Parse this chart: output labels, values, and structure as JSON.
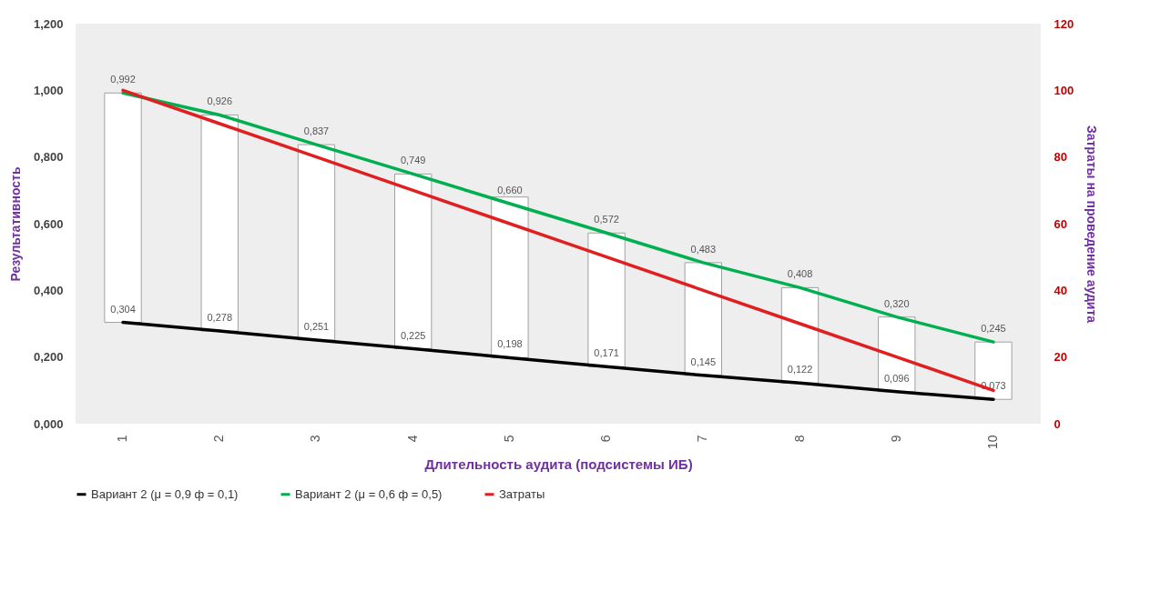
{
  "chart_data": {
    "type": "line",
    "xlabel": "Длительность аудита (подсистемы ИБ)",
    "ylabel": "Результативность",
    "y2label": "Затраты на проведение аудита",
    "categories": [
      "1",
      "2",
      "3",
      "4",
      "5",
      "6",
      "7",
      "8",
      "9",
      "10"
    ],
    "series": [
      {
        "type": "bar",
        "color": "#ffffff",
        "base": [
          0.304,
          0.278,
          0.251,
          0.225,
          0.198,
          0.171,
          0.145,
          0.122,
          0.096,
          0.073
        ],
        "values": [
          0.688,
          0.648,
          0.586,
          0.524,
          0.482,
          0.401,
          0.338,
          0.286,
          0.224,
          0.172
        ]
      },
      {
        "name": "Вариант 2 (μ = 0,9 ф = 0,1)",
        "color": "#000000",
        "values": [
          0.304,
          0.278,
          0.251,
          0.225,
          0.198,
          0.171,
          0.145,
          0.122,
          0.096,
          0.073
        ],
        "value_labels": [
          "0,304",
          "0,278",
          "0,251",
          "0,225",
          "0,198",
          "0,171",
          "0,145",
          "0,122",
          "0,096",
          "0,073"
        ]
      },
      {
        "name": "Вариант 2 (μ = 0,6 ф = 0,5)",
        "color": "#00b050",
        "values": [
          0.992,
          0.926,
          0.837,
          0.749,
          0.66,
          0.572,
          0.483,
          0.408,
          0.32,
          0.245
        ],
        "value_labels": [
          "0,992",
          "0,926",
          "0,837",
          "0,749",
          "0,660",
          "0,572",
          "0,483",
          "0,408",
          "0,320",
          "0,245"
        ]
      },
      {
        "name": "Затраты",
        "color": "#e02020",
        "axis": "y2",
        "values": [
          100,
          90,
          80,
          70,
          60,
          50,
          40,
          30,
          20,
          10
        ]
      }
    ],
    "ylim": [
      0,
      1.2
    ],
    "yticks": [
      {
        "value": 0,
        "label": "0,000"
      },
      {
        "value": 0.2,
        "label": "0,200"
      },
      {
        "value": 0.4,
        "label": "0,400"
      },
      {
        "value": 0.6,
        "label": "0,600"
      },
      {
        "value": 0.8,
        "label": "0,800"
      },
      {
        "value": 1,
        "label": "1,000"
      },
      {
        "value": 1.2,
        "label": "1,200"
      }
    ],
    "y2lim": [
      0,
      120
    ],
    "y2ticks": [
      0,
      20,
      40,
      60,
      80,
      100,
      120
    ],
    "legend": "bottom"
  }
}
